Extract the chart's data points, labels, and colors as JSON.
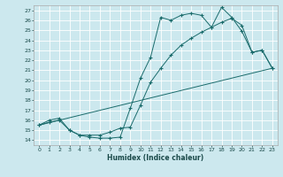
{
  "xlabel": "Humidex (Indice chaleur)",
  "bg_color": "#cce8ee",
  "grid_color": "#ffffff",
  "line_color": "#1a6b6b",
  "xlim": [
    -0.5,
    23.5
  ],
  "ylim": [
    13.5,
    27.5
  ],
  "yticks": [
    14,
    15,
    16,
    17,
    18,
    19,
    20,
    21,
    22,
    23,
    24,
    25,
    26,
    27
  ],
  "xticks": [
    0,
    1,
    2,
    3,
    4,
    5,
    6,
    7,
    8,
    9,
    10,
    11,
    12,
    13,
    14,
    15,
    16,
    17,
    18,
    19,
    20,
    21,
    22,
    23
  ],
  "line1_x": [
    0,
    1,
    2,
    3,
    4,
    5,
    6,
    7,
    8,
    9,
    10,
    11,
    12,
    13,
    14,
    15,
    16,
    17,
    18,
    19,
    20,
    21,
    22,
    23
  ],
  "line1_y": [
    15.5,
    16.0,
    16.2,
    15.0,
    14.5,
    14.3,
    14.2,
    14.2,
    14.3,
    17.2,
    20.2,
    22.3,
    26.3,
    26.0,
    26.5,
    26.7,
    26.5,
    25.3,
    27.3,
    26.3,
    24.9,
    22.8,
    23.0,
    21.2
  ],
  "line2_x": [
    0,
    1,
    2,
    3,
    4,
    5,
    6,
    7,
    8,
    9,
    10,
    11,
    12,
    13,
    14,
    15,
    16,
    17,
    18,
    19,
    20,
    21,
    22,
    23
  ],
  "line2_y": [
    15.5,
    15.8,
    16.0,
    15.0,
    14.5,
    14.5,
    14.5,
    14.8,
    15.2,
    15.3,
    17.5,
    19.8,
    21.2,
    22.5,
    23.5,
    24.2,
    24.8,
    25.3,
    25.8,
    26.2,
    25.5,
    22.8,
    23.0,
    21.2
  ],
  "line3_x": [
    0,
    23
  ],
  "line3_y": [
    15.5,
    21.2
  ]
}
